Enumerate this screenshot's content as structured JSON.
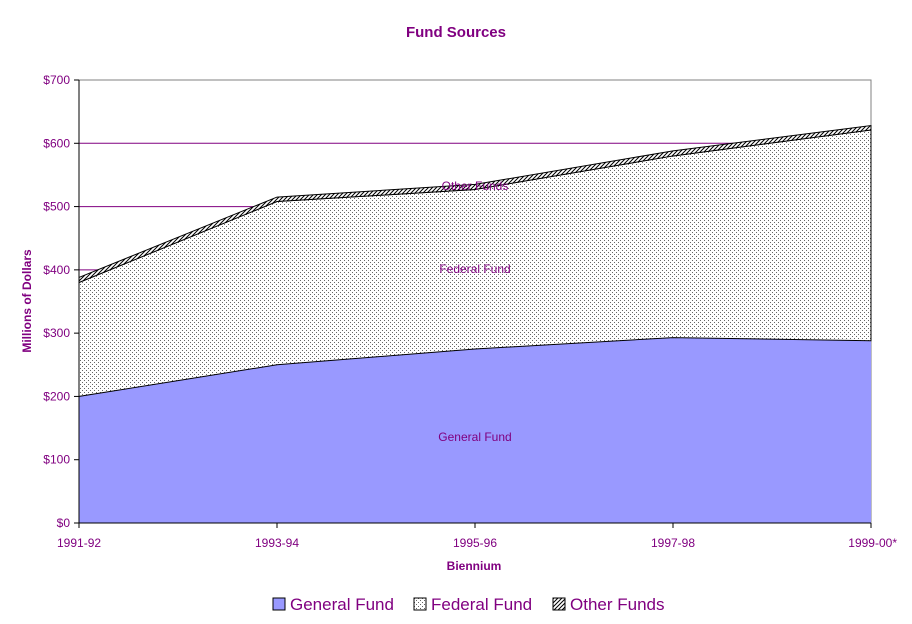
{
  "chart_data": {
    "type": "area",
    "stacked": true,
    "title": "Fund Sources",
    "xlabel": "Biennium",
    "ylabel": "Millions of Dollars",
    "categories": [
      "1991-92",
      "1993-94",
      "1995-96",
      "1997-98",
      "1999-00*"
    ],
    "y_tick_labels": [
      "$0",
      "$100",
      "$200",
      "$300",
      "$400",
      "$500",
      "$600",
      "$700"
    ],
    "ylim": [
      0,
      700
    ],
    "grid": "horizontal major gridlines",
    "legend_position": "bottom",
    "series": [
      {
        "name": "General Fund",
        "values": [
          200,
          250,
          275,
          293,
          288
        ],
        "color": "#9999ff",
        "fill": "solid"
      },
      {
        "name": "Federal Fund",
        "values": [
          180,
          258,
          252,
          287,
          333
        ],
        "color": "#ffffff",
        "fill": "dotted"
      },
      {
        "name": "Other Funds",
        "values": [
          8,
          7,
          8,
          8,
          7
        ],
        "color": "#ffffff",
        "fill": "diagonal-hatch"
      }
    ],
    "annotations": [
      "General Fund",
      "Federal Fund",
      "Other Funds"
    ]
  }
}
